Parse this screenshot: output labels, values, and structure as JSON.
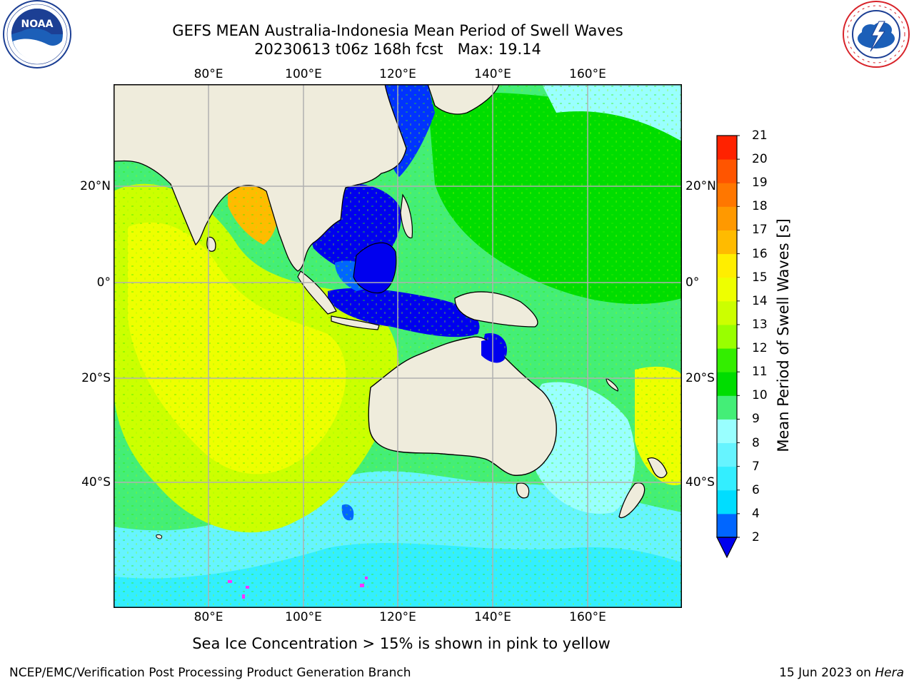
{
  "title": {
    "line1": "GEFS MEAN Australia-Indonesia Mean Period of Swell Waves",
    "line2": "20230613 t06z 168h fcst   Max: 19.14"
  },
  "logos": {
    "left": {
      "name": "noaa-logo",
      "text": "NOAA",
      "ring_text": "NATIONAL OCEANIC AND ATMOSPHERIC ADMINISTRATION · U.S. DEPARTMENT OF COMMERCE"
    },
    "right": {
      "name": "nws-logo",
      "ring_text": "NATIONAL WEATHER SERVICE"
    }
  },
  "map": {
    "lon_labels": [
      "80°E",
      "100°E",
      "120°E",
      "140°E",
      "160°E"
    ],
    "lat_labels": [
      "20°N",
      "0°",
      "20°S",
      "40°S"
    ],
    "grid": true,
    "colors": {
      "land": "#efecdc",
      "grid": "#b0b0b0",
      "sea_ice": "#ff33ff"
    }
  },
  "colorbar": {
    "label": "Mean Period of Swell Waves [s]",
    "ticks": [
      "2",
      "4",
      "6",
      "7",
      "8",
      "9",
      "10",
      "11",
      "12",
      "13",
      "14",
      "15",
      "16",
      "17",
      "18",
      "19",
      "20",
      "21"
    ],
    "colors": [
      "#0066ff",
      "#00ddff",
      "#33eeff",
      "#66f4ff",
      "#99ffff",
      "#44ee77",
      "#00dd00",
      "#33ee00",
      "#99ff00",
      "#ccff00",
      "#eeff00",
      "#ffee00",
      "#ffbb00",
      "#ff9900",
      "#ff7700",
      "#ff5500",
      "#ff2200"
    ],
    "extend_min_color": "#0000ee"
  },
  "note": "Sea Ice Concentration > 15% is shown in pink to yellow",
  "footer": {
    "left": "NCEP/EMC/Verification Post Processing Product Generation Branch",
    "date": "15 Jun 2023 on",
    "machine": "Hera"
  }
}
